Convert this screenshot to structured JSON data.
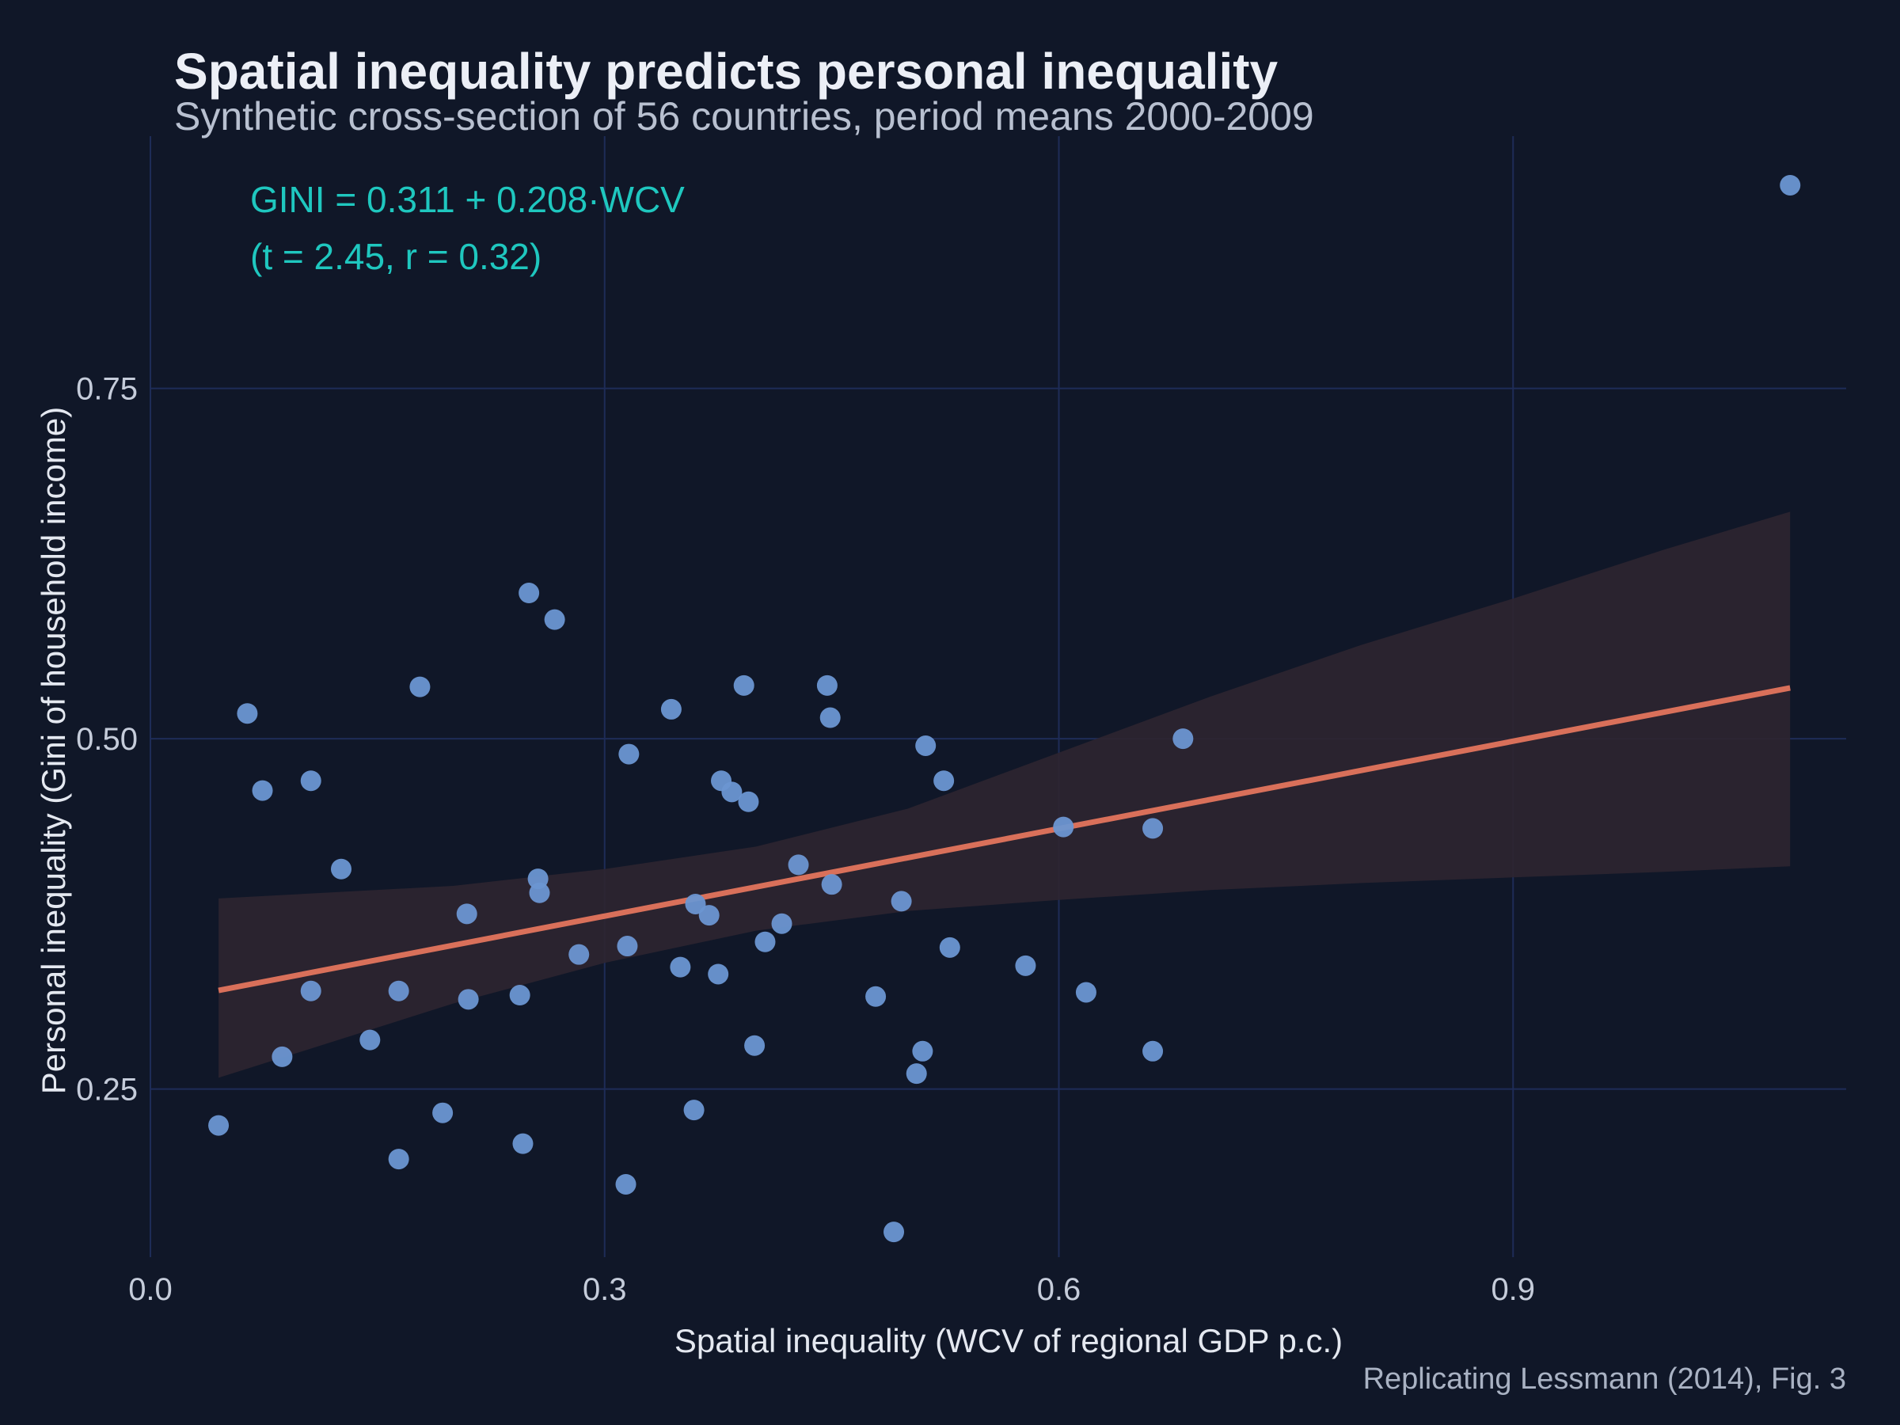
{
  "colors": {
    "background": "#101728",
    "grid": "#1E2C57",
    "points": "#6C96D2",
    "fit_line": "#D9705A",
    "ribbon": "#2E2530",
    "annotation": "#1FC7BF"
  },
  "chart_data": {
    "type": "scatter",
    "title": "Spatial inequality predicts personal inequality",
    "subtitle": "Synthetic cross-section of 56 countries, period means 2000-2009",
    "xlabel": "Spatial inequality (WCV of regional GDP p.c.)",
    "ylabel": "Personal inequality (Gini of household income)",
    "caption": "Replicating Lessmann (2014), Fig. 3",
    "annotation": [
      "GINI = 0.311 + 0.208·WCV",
      "(t = 2.45, r = 0.32)"
    ],
    "xlim": [
      0.0,
      1.12
    ],
    "ylim": [
      0.13,
      0.93
    ],
    "xticks": [
      0.0,
      0.3,
      0.6,
      0.9
    ],
    "xtick_labels": [
      "0.0",
      "0.3",
      "0.6",
      "0.9"
    ],
    "yticks": [
      0.25,
      0.5,
      0.75
    ],
    "ytick_labels": [
      "0.25",
      "0.50",
      "0.75"
    ],
    "grid": true,
    "legend": "none",
    "fit": {
      "intercept": 0.311,
      "slope": 0.208,
      "x_range": [
        0.045,
        1.083
      ],
      "ci_band": [
        {
          "x": 0.045,
          "lo": 0.258,
          "hi": 0.386
        },
        {
          "x": 0.2,
          "lo": 0.311,
          "hi": 0.395
        },
        {
          "x": 0.3,
          "lo": 0.34,
          "hi": 0.407
        },
        {
          "x": 0.4,
          "lo": 0.363,
          "hi": 0.423
        },
        {
          "x": 0.5,
          "lo": 0.377,
          "hi": 0.45
        },
        {
          "x": 0.6,
          "lo": 0.385,
          "hi": 0.49
        },
        {
          "x": 0.7,
          "lo": 0.392,
          "hi": 0.53
        },
        {
          "x": 0.8,
          "lo": 0.397,
          "hi": 0.567
        },
        {
          "x": 0.9,
          "lo": 0.401,
          "hi": 0.6
        },
        {
          "x": 1.0,
          "lo": 0.405,
          "hi": 0.635
        },
        {
          "x": 1.083,
          "lo": 0.409,
          "hi": 0.662
        }
      ]
    },
    "points": [
      {
        "x": 0.045,
        "y": 0.224
      },
      {
        "x": 0.064,
        "y": 0.518
      },
      {
        "x": 0.074,
        "y": 0.463
      },
      {
        "x": 0.087,
        "y": 0.273
      },
      {
        "x": 0.106,
        "y": 0.47
      },
      {
        "x": 0.106,
        "y": 0.32
      },
      {
        "x": 0.126,
        "y": 0.407
      },
      {
        "x": 0.145,
        "y": 0.285
      },
      {
        "x": 0.164,
        "y": 0.2
      },
      {
        "x": 0.164,
        "y": 0.32
      },
      {
        "x": 0.178,
        "y": 0.537
      },
      {
        "x": 0.193,
        "y": 0.233
      },
      {
        "x": 0.209,
        "y": 0.375
      },
      {
        "x": 0.21,
        "y": 0.314
      },
      {
        "x": 0.244,
        "y": 0.317
      },
      {
        "x": 0.246,
        "y": 0.211
      },
      {
        "x": 0.25,
        "y": 0.604
      },
      {
        "x": 0.256,
        "y": 0.4
      },
      {
        "x": 0.257,
        "y": 0.39
      },
      {
        "x": 0.267,
        "y": 0.585
      },
      {
        "x": 0.283,
        "y": 0.346
      },
      {
        "x": 0.314,
        "y": 0.182
      },
      {
        "x": 0.315,
        "y": 0.352
      },
      {
        "x": 0.316,
        "y": 0.489
      },
      {
        "x": 0.344,
        "y": 0.521
      },
      {
        "x": 0.35,
        "y": 0.337
      },
      {
        "x": 0.359,
        "y": 0.235
      },
      {
        "x": 0.36,
        "y": 0.382
      },
      {
        "x": 0.369,
        "y": 0.374
      },
      {
        "x": 0.375,
        "y": 0.332
      },
      {
        "x": 0.377,
        "y": 0.47
      },
      {
        "x": 0.384,
        "y": 0.462
      },
      {
        "x": 0.392,
        "y": 0.538
      },
      {
        "x": 0.395,
        "y": 0.455
      },
      {
        "x": 0.399,
        "y": 0.281
      },
      {
        "x": 0.406,
        "y": 0.355
      },
      {
        "x": 0.417,
        "y": 0.368
      },
      {
        "x": 0.428,
        "y": 0.41
      },
      {
        "x": 0.447,
        "y": 0.538
      },
      {
        "x": 0.449,
        "y": 0.515
      },
      {
        "x": 0.45,
        "y": 0.396
      },
      {
        "x": 0.479,
        "y": 0.316
      },
      {
        "x": 0.491,
        "y": 0.148
      },
      {
        "x": 0.496,
        "y": 0.384
      },
      {
        "x": 0.506,
        "y": 0.261
      },
      {
        "x": 0.51,
        "y": 0.277
      },
      {
        "x": 0.512,
        "y": 0.495
      },
      {
        "x": 0.524,
        "y": 0.47
      },
      {
        "x": 0.528,
        "y": 0.351
      },
      {
        "x": 0.578,
        "y": 0.338
      },
      {
        "x": 0.603,
        "y": 0.437
      },
      {
        "x": 0.618,
        "y": 0.319
      },
      {
        "x": 0.662,
        "y": 0.277
      },
      {
        "x": 0.662,
        "y": 0.436
      },
      {
        "x": 0.682,
        "y": 0.5
      },
      {
        "x": 1.083,
        "y": 0.895
      }
    ]
  }
}
